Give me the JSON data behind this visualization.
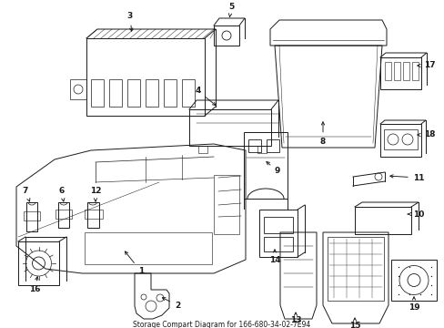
{
  "title": "Storage Compart Diagram for 166-680-34-02-7E94",
  "bg_color": "#ffffff",
  "line_color": "#1a1a1a",
  "figsize": [
    4.89,
    3.6
  ],
  "dpi": 100
}
